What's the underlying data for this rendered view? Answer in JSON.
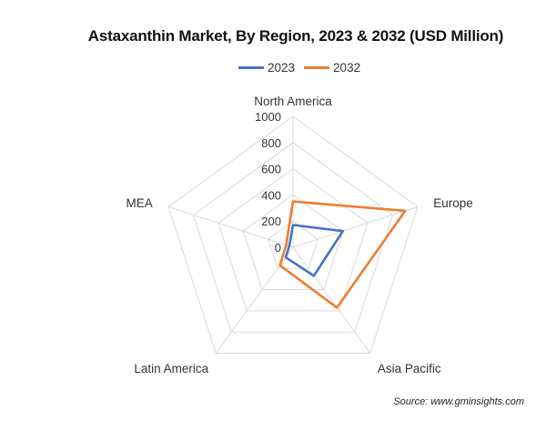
{
  "chart_data": {
    "type": "radar",
    "title": "Astaxanthin Market, By Region, 2023 & 2032 (USD Million)",
    "categories": [
      "North America",
      "Europe",
      "Asia Pacific",
      "Latin America",
      "MEA"
    ],
    "series": [
      {
        "name": "2023",
        "color": "#4472C4",
        "values": [
          170,
          400,
          270,
          95,
          30
        ]
      },
      {
        "name": "2032",
        "color": "#ED7D31",
        "values": [
          350,
          900,
          570,
          170,
          55
        ]
      }
    ],
    "rlim": [
      0,
      1000
    ],
    "ticks": [
      "0",
      "200",
      "400",
      "600",
      "800",
      "1000"
    ],
    "grid": true,
    "legend_position": "top"
  },
  "source": "Source: www.gminsights.com"
}
